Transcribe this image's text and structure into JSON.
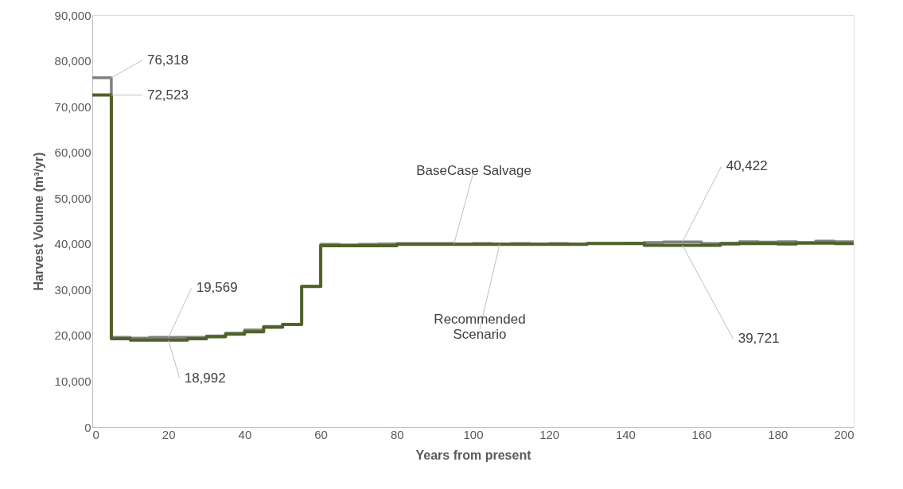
{
  "chart_data": {
    "type": "step",
    "xlabel": "Years from present",
    "ylabel": "Harvest Volume (m³/yr)",
    "x": [
      0,
      5,
      10,
      15,
      20,
      25,
      30,
      35,
      40,
      45,
      50,
      55,
      60,
      65,
      70,
      75,
      80,
      85,
      90,
      95,
      100,
      105,
      110,
      115,
      120,
      125,
      130,
      135,
      140,
      145,
      150,
      155,
      160,
      165,
      170,
      175,
      180,
      185,
      190,
      195,
      200
    ],
    "series": [
      {
        "color": "#808080",
        "values": [
          76318,
          19569,
          19400,
          19569,
          19569,
          19569,
          19900,
          20500,
          21200,
          22000,
          22400,
          30700,
          39900,
          39800,
          39900,
          40000,
          40100,
          40100,
          40100,
          40000,
          40100,
          40000,
          40100,
          40000,
          40100,
          40000,
          40100,
          40100,
          40200,
          40300,
          40422,
          40422,
          40100,
          40200,
          40500,
          40400,
          40500,
          40300,
          40600,
          40500,
          40500
        ]
      },
      {
        "color": "#4f6228",
        "values": [
          72523,
          19300,
          18992,
          18992,
          18992,
          19300,
          19700,
          20300,
          20800,
          21800,
          22400,
          30700,
          39600,
          39600,
          39600,
          39600,
          39900,
          39900,
          39900,
          39900,
          39900,
          39900,
          39900,
          39900,
          39900,
          39900,
          40100,
          40100,
          40100,
          39721,
          39721,
          39721,
          39721,
          40000,
          40100,
          40100,
          40000,
          40200,
          40200,
          40100,
          40100
        ]
      }
    ],
    "annotations": [
      {
        "text": "76,318",
        "x": 5,
        "y": 76318
      },
      {
        "text": "72,523",
        "x": 5,
        "y": 72523
      },
      {
        "text": "19,569",
        "x": 20,
        "y": 19569
      },
      {
        "text": "18,992",
        "x": 20,
        "y": 18992
      },
      {
        "text": "BaseCase Salvage",
        "x": 95,
        "y": 40000
      },
      {
        "text": "Recommended Scenario",
        "x": 107,
        "y": 39900
      },
      {
        "text": "40,422",
        "x": 155,
        "y": 40422
      },
      {
        "text": "39,721",
        "x": 155,
        "y": 39721
      }
    ],
    "xlim": [
      0,
      200
    ],
    "xticks": [
      0,
      20,
      40,
      60,
      80,
      100,
      120,
      140,
      160,
      180,
      200
    ],
    "ylim": [
      0,
      90000
    ],
    "yticks": [
      0,
      {
        "value": 10000,
        "label": "10,000"
      },
      {
        "value": 20000,
        "label": "20,000"
      },
      {
        "value": 30000,
        "label": "30,000"
      },
      {
        "value": 40000,
        "label": "40,000"
      },
      {
        "value": 50000,
        "label": "50,000"
      },
      {
        "value": 60000,
        "label": "60,000"
      },
      {
        "value": 70000,
        "label": "70,000"
      },
      {
        "value": 80000,
        "label": "80,000"
      },
      {
        "value": 90000,
        "label": "90,000"
      }
    ],
    "grid": false,
    "line_style": "solid",
    "marker": "none"
  }
}
